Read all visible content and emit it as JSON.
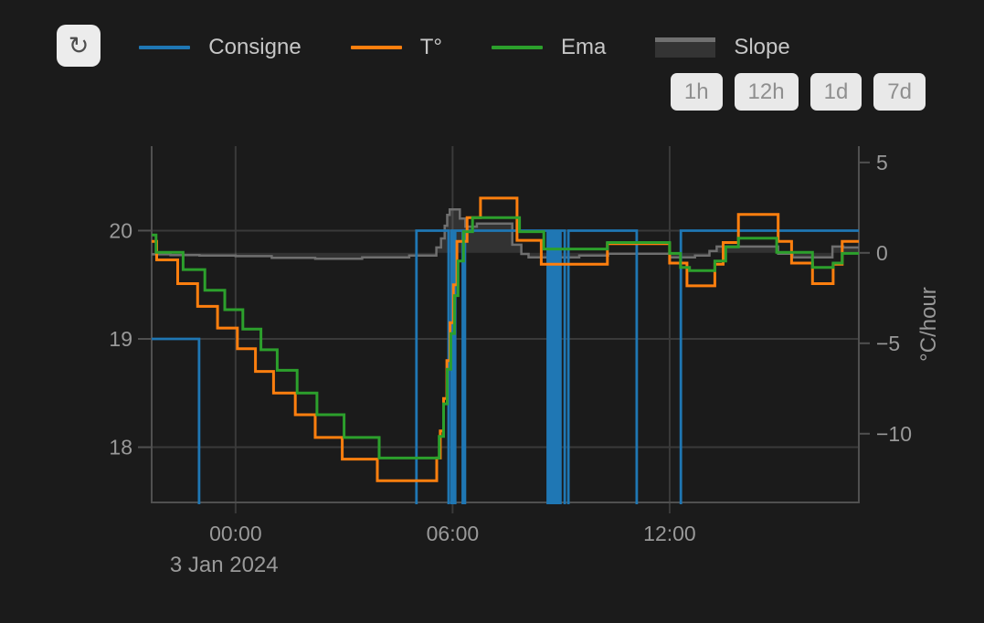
{
  "toolbar": {
    "refresh_icon": "↻"
  },
  "legend": {
    "items": [
      {
        "label": "Consigne",
        "color": "#1f77b4",
        "type": "line"
      },
      {
        "label": "T°",
        "color": "#ff7f0e",
        "type": "line"
      },
      {
        "label": "Ema",
        "color": "#2ca02c",
        "type": "line"
      },
      {
        "label": "Slope",
        "color": "#707070",
        "type": "area"
      }
    ]
  },
  "range_buttons": [
    "1h",
    "12h",
    "1d",
    "7d"
  ],
  "chart_data": {
    "type": "line",
    "subtype": "step-time-series",
    "x_axis": {
      "range_hours": [
        -2.32,
        17.23
      ],
      "ticks": [
        {
          "t": 0,
          "label": "00:00"
        },
        {
          "t": 6,
          "label": "06:00"
        },
        {
          "t": 12,
          "label": "12:00"
        }
      ],
      "date_label": "3 Jan 2024"
    },
    "y_left": {
      "range": [
        17.49,
        20.78
      ],
      "ticks": [
        {
          "v": 20,
          "label": "20"
        },
        {
          "v": 19,
          "label": "19"
        },
        {
          "v": 18,
          "label": "18"
        }
      ]
    },
    "y_right": {
      "range": [
        -13.8,
        5.9
      ],
      "title": "°C/hour",
      "ticks": [
        {
          "v": 5,
          "label": "5"
        },
        {
          "v": 0,
          "label": "0"
        },
        {
          "v": -5,
          "label": "−5"
        },
        {
          "v": -10,
          "label": "−10"
        }
      ]
    },
    "grid": {
      "color": "#3a3a3a",
      "axis_color": "#505050",
      "label_color": "#999999"
    },
    "series": [
      {
        "name": "Slope",
        "axis": "right",
        "color": "#6f6f6f",
        "width": 2.5,
        "area": true,
        "fill": "rgba(130,130,130,0.22)",
        "points": [
          [
            -2.32,
            -0.08
          ],
          [
            -1.8,
            -0.12
          ],
          [
            -1.0,
            -0.15
          ],
          [
            0.0,
            -0.18
          ],
          [
            1.0,
            -0.28
          ],
          [
            2.2,
            -0.33
          ],
          [
            3.5,
            -0.25
          ],
          [
            4.8,
            -0.15
          ],
          [
            5.55,
            0.3
          ],
          [
            5.68,
            0.8
          ],
          [
            5.78,
            1.5
          ],
          [
            5.85,
            2.1
          ],
          [
            5.92,
            2.4
          ],
          [
            6.2,
            1.9
          ],
          [
            6.35,
            1.45
          ],
          [
            6.67,
            1.62
          ],
          [
            7.65,
            0.45
          ],
          [
            7.9,
            -0.06
          ],
          [
            8.1,
            -0.25
          ],
          [
            9.5,
            -0.15
          ],
          [
            10.3,
            -0.05
          ],
          [
            12.0,
            -0.25
          ],
          [
            12.7,
            -0.15
          ],
          [
            13.1,
            0.1
          ],
          [
            13.3,
            0.35
          ],
          [
            15.0,
            -0.05
          ],
          [
            15.4,
            -0.25
          ],
          [
            16.5,
            0.35
          ],
          [
            16.8,
            0.3
          ]
        ]
      },
      {
        "name": "Consigne",
        "axis": "left",
        "color": "#1f77b4",
        "width": 2.8,
        "area": false,
        "points": [
          [
            -2.32,
            19
          ],
          [
            -1.01,
            17
          ],
          [
            5.0,
            20
          ],
          [
            5.89,
            17
          ],
          [
            5.97,
            20
          ],
          [
            6.01,
            17
          ],
          [
            6.07,
            20
          ],
          [
            6.28,
            17
          ],
          [
            6.34,
            20
          ],
          [
            8.63,
            17
          ],
          [
            8.68,
            20
          ],
          [
            8.73,
            17
          ],
          [
            8.78,
            20
          ],
          [
            8.83,
            17
          ],
          [
            8.88,
            20
          ],
          [
            8.93,
            17
          ],
          [
            8.98,
            20
          ],
          [
            9.1,
            17
          ],
          [
            9.2,
            20
          ],
          [
            11.09,
            17
          ],
          [
            12.31,
            20
          ]
        ]
      },
      {
        "name": "T°",
        "axis": "left",
        "color": "#ff7f0e",
        "width": 3,
        "area": false,
        "points": [
          [
            -2.32,
            19.9
          ],
          [
            -2.18,
            19.73
          ],
          [
            -1.6,
            19.51
          ],
          [
            -1.05,
            19.3
          ],
          [
            -0.5,
            19.1
          ],
          [
            0.05,
            18.91
          ],
          [
            0.55,
            18.7
          ],
          [
            1.05,
            18.5
          ],
          [
            1.65,
            18.3
          ],
          [
            2.2,
            18.09
          ],
          [
            2.95,
            17.89
          ],
          [
            3.92,
            17.69
          ],
          [
            5.56,
            17.9
          ],
          [
            5.66,
            18.15
          ],
          [
            5.75,
            18.45
          ],
          [
            5.84,
            18.8
          ],
          [
            5.93,
            19.15
          ],
          [
            6.02,
            19.5
          ],
          [
            6.12,
            19.9
          ],
          [
            6.4,
            20.12
          ],
          [
            6.77,
            20.3
          ],
          [
            7.78,
            19.91
          ],
          [
            8.45,
            19.69
          ],
          [
            10.28,
            19.88
          ],
          [
            12.0,
            19.7
          ],
          [
            12.48,
            19.49
          ],
          [
            13.25,
            19.69
          ],
          [
            13.48,
            19.89
          ],
          [
            13.9,
            20.15
          ],
          [
            15.0,
            19.9
          ],
          [
            15.37,
            19.7
          ],
          [
            15.95,
            19.51
          ],
          [
            16.52,
            19.69
          ],
          [
            16.77,
            19.9
          ]
        ]
      },
      {
        "name": "Ema",
        "axis": "left",
        "color": "#2ca02c",
        "width": 3,
        "area": false,
        "points": [
          [
            -2.32,
            19.96
          ],
          [
            -2.2,
            19.8
          ],
          [
            -1.45,
            19.64
          ],
          [
            -0.85,
            19.45
          ],
          [
            -0.3,
            19.27
          ],
          [
            0.2,
            19.09
          ],
          [
            0.7,
            18.9
          ],
          [
            1.15,
            18.71
          ],
          [
            1.7,
            18.5
          ],
          [
            2.25,
            18.3
          ],
          [
            3.0,
            18.09
          ],
          [
            3.97,
            17.9
          ],
          [
            5.63,
            18.1
          ],
          [
            5.75,
            18.4
          ],
          [
            5.85,
            18.72
          ],
          [
            5.95,
            19.05
          ],
          [
            6.05,
            19.4
          ],
          [
            6.15,
            19.72
          ],
          [
            6.3,
            19.99
          ],
          [
            6.55,
            20.12
          ],
          [
            7.85,
            19.99
          ],
          [
            8.52,
            19.83
          ],
          [
            10.28,
            19.89
          ],
          [
            12.0,
            19.79
          ],
          [
            12.3,
            19.66
          ],
          [
            12.55,
            19.63
          ],
          [
            13.25,
            19.72
          ],
          [
            13.55,
            19.85
          ],
          [
            13.9,
            19.93
          ],
          [
            14.96,
            19.8
          ],
          [
            15.95,
            19.66
          ],
          [
            16.52,
            19.7
          ],
          [
            16.77,
            19.79
          ]
        ]
      }
    ]
  }
}
